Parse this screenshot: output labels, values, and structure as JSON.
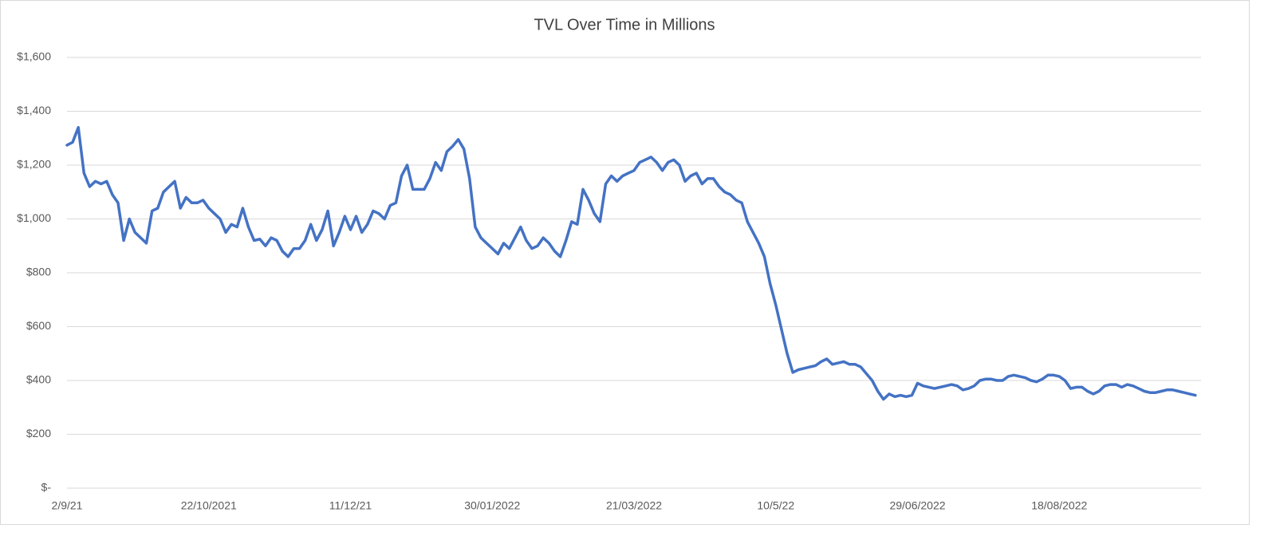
{
  "chart_data": {
    "type": "line",
    "title": "TVL Over Time in Millions",
    "categories": [
      "2/9/21",
      null,
      null,
      null,
      null,
      null,
      null,
      null,
      null,
      null,
      null,
      null,
      null,
      null,
      null,
      null,
      null,
      null,
      null,
      null,
      null,
      null,
      null,
      null,
      null,
      "22/10/2021",
      null,
      null,
      null,
      null,
      null,
      null,
      null,
      null,
      null,
      null,
      null,
      null,
      null,
      null,
      null,
      null,
      null,
      null,
      null,
      null,
      null,
      null,
      null,
      null,
      "11/12/21",
      null,
      null,
      null,
      null,
      null,
      null,
      null,
      null,
      null,
      null,
      null,
      null,
      null,
      null,
      null,
      null,
      null,
      null,
      null,
      null,
      null,
      null,
      null,
      null,
      "30/01/2022",
      null,
      null,
      null,
      null,
      null,
      null,
      null,
      null,
      null,
      null,
      null,
      null,
      null,
      null,
      null,
      null,
      null,
      null,
      null,
      null,
      null,
      null,
      null,
      null,
      "21/03/2022",
      null,
      null,
      null,
      null,
      null,
      null,
      null,
      null,
      null,
      null,
      null,
      null,
      null,
      null,
      null,
      null,
      null,
      null,
      null,
      null,
      null,
      null,
      null,
      null,
      "10/5/22",
      null,
      null,
      null,
      null,
      null,
      null,
      null,
      null,
      null,
      null,
      null,
      null,
      null,
      null,
      null,
      null,
      null,
      null,
      null,
      null,
      null,
      null,
      null,
      null,
      "29/06/2022",
      null,
      null,
      null,
      null,
      null,
      null,
      null,
      null,
      null,
      null,
      null,
      null,
      null,
      null,
      null,
      null,
      null,
      null,
      null,
      null,
      null,
      null,
      null,
      null,
      "18/08/2022",
      null,
      null,
      null,
      null,
      null,
      null,
      null,
      null,
      null,
      null,
      null,
      null,
      null,
      null,
      null,
      null,
      null,
      null,
      null,
      null,
      null,
      null,
      null,
      null
    ],
    "values": [
      1274,
      1285,
      1340,
      1170,
      1120,
      1140,
      1130,
      1140,
      1090,
      1060,
      920,
      1000,
      950,
      930,
      910,
      1030,
      1040,
      1100,
      1120,
      1140,
      1040,
      1080,
      1060,
      1060,
      1070,
      1040,
      1020,
      1000,
      950,
      980,
      970,
      1040,
      970,
      920,
      925,
      900,
      930,
      920,
      880,
      860,
      890,
      890,
      920,
      980,
      920,
      960,
      1030,
      900,
      950,
      1010,
      960,
      1010,
      950,
      980,
      1030,
      1020,
      1000,
      1050,
      1060,
      1160,
      1200,
      1110,
      1110,
      1110,
      1150,
      1210,
      1180,
      1250,
      1270,
      1295,
      1260,
      1150,
      970,
      930,
      910,
      890,
      870,
      910,
      890,
      930,
      970,
      920,
      890,
      900,
      930,
      910,
      880,
      860,
      920,
      990,
      980,
      1110,
      1070,
      1020,
      990,
      1130,
      1160,
      1140,
      1160,
      1170,
      1180,
      1210,
      1220,
      1230,
      1210,
      1180,
      1210,
      1220,
      1200,
      1140,
      1160,
      1170,
      1130,
      1150,
      1150,
      1120,
      1100,
      1090,
      1070,
      1060,
      990,
      950,
      910,
      860,
      760,
      680,
      590,
      500,
      430,
      440,
      445,
      450,
      455,
      470,
      480,
      460,
      465,
      470,
      460,
      460,
      450,
      425,
      400,
      360,
      330,
      350,
      340,
      345,
      340,
      345,
      390,
      380,
      375,
      370,
      375,
      380,
      385,
      380,
      365,
      370,
      380,
      400,
      405,
      405,
      400,
      400,
      415,
      420,
      415,
      410,
      400,
      395,
      405,
      420,
      420,
      415,
      400,
      370,
      375,
      375,
      360,
      350,
      360,
      380,
      385,
      385,
      375,
      385,
      380,
      370,
      360,
      355,
      355,
      360,
      365,
      365,
      360,
      355,
      350,
      345
    ],
    "color": "#4472c4",
    "ylim": [
      0,
      1600
    ],
    "yticks": [
      {
        "value": 0,
        "label": "$-"
      },
      {
        "value": 200,
        "label": "$200"
      },
      {
        "value": 400,
        "label": "$400"
      },
      {
        "value": 600,
        "label": "$600"
      },
      {
        "value": 800,
        "label": "$800"
      },
      {
        "value": 1000,
        "label": "$1,000"
      },
      {
        "value": 1200,
        "label": "$1,200"
      },
      {
        "value": 1400,
        "label": "$1,400"
      },
      {
        "value": 1600,
        "label": "$1,600"
      }
    ],
    "grid": true
  }
}
